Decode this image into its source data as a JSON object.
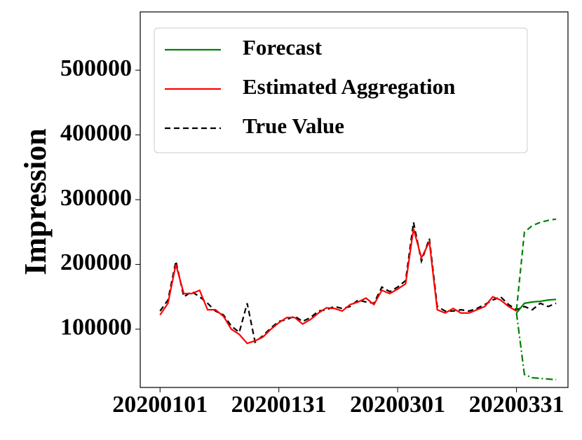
{
  "chart_data": {
    "type": "line",
    "y_label": "Impression",
    "x": [
      0,
      2,
      4,
      6,
      8,
      10,
      12,
      14,
      16,
      18,
      20,
      22,
      24,
      26,
      28,
      30,
      32,
      34,
      36,
      38,
      40,
      42,
      44,
      46,
      48,
      50,
      52,
      54,
      56,
      58,
      60,
      62,
      64,
      66,
      68,
      70,
      72,
      74,
      76,
      78,
      80,
      82,
      84,
      86,
      88,
      90,
      92,
      94,
      96,
      98,
      100
    ],
    "xlim": [
      -5,
      103
    ],
    "xticks": [
      {
        "value": 0,
        "label": "20200101"
      },
      {
        "value": 30,
        "label": "20200131"
      },
      {
        "value": 60,
        "label": "20200301"
      },
      {
        "value": 90,
        "label": "20200331"
      }
    ],
    "ylim": [
      10000,
      590000
    ],
    "yticks": [
      100000,
      200000,
      300000,
      400000,
      500000
    ],
    "legend": "upper-left",
    "series": [
      {
        "name": "Forecast",
        "color": "#008000",
        "dash": "solid",
        "values": [
          null,
          null,
          null,
          null,
          null,
          null,
          null,
          null,
          null,
          null,
          null,
          null,
          null,
          null,
          null,
          null,
          null,
          null,
          null,
          null,
          null,
          null,
          null,
          null,
          null,
          null,
          null,
          null,
          null,
          null,
          null,
          null,
          null,
          null,
          null,
          null,
          null,
          null,
          null,
          null,
          null,
          null,
          null,
          null,
          null,
          125000,
          140000,
          142000,
          143000,
          145000,
          146000
        ]
      },
      {
        "name": "Estimated Aggregation",
        "color": "#ff0000",
        "dash": "solid",
        "values": [
          122000,
          140000,
          200000,
          155000,
          155000,
          160000,
          130000,
          130000,
          120000,
          100000,
          92000,
          78000,
          82000,
          88000,
          100000,
          110000,
          118000,
          118000,
          108000,
          115000,
          125000,
          133000,
          132000,
          128000,
          138000,
          142000,
          148000,
          138000,
          160000,
          155000,
          162000,
          170000,
          255000,
          210000,
          235000,
          130000,
          125000,
          132000,
          125000,
          125000,
          130000,
          135000,
          150000,
          145000,
          135000,
          128000,
          null,
          null,
          null,
          null,
          null
        ]
      },
      {
        "name": "True Value",
        "color": "#000000",
        "dash": "dashed",
        "values": [
          128000,
          145000,
          205000,
          150000,
          158000,
          150000,
          140000,
          128000,
          122000,
          105000,
          95000,
          140000,
          80000,
          90000,
          102000,
          112000,
          115000,
          120000,
          112000,
          118000,
          128000,
          130000,
          135000,
          132000,
          135000,
          145000,
          142000,
          140000,
          165000,
          158000,
          165000,
          175000,
          265000,
          205000,
          240000,
          135000,
          128000,
          128000,
          130000,
          128000,
          132000,
          138000,
          145000,
          150000,
          138000,
          130000,
          135000,
          130000,
          140000,
          135000,
          140000
        ]
      },
      {
        "color": "#008000",
        "dash": "dashed",
        "values": [
          null,
          null,
          null,
          null,
          null,
          null,
          null,
          null,
          null,
          null,
          null,
          null,
          null,
          null,
          null,
          null,
          null,
          null,
          null,
          null,
          null,
          null,
          null,
          null,
          null,
          null,
          null,
          null,
          null,
          null,
          null,
          null,
          null,
          null,
          null,
          null,
          null,
          null,
          null,
          null,
          null,
          null,
          null,
          null,
          null,
          130000,
          250000,
          260000,
          265000,
          268000,
          270000
        ]
      },
      {
        "color": "#008000",
        "dash": "dashdot",
        "values": [
          null,
          null,
          null,
          null,
          null,
          null,
          null,
          null,
          null,
          null,
          null,
          null,
          null,
          null,
          null,
          null,
          null,
          null,
          null,
          null,
          null,
          null,
          null,
          null,
          null,
          null,
          null,
          null,
          null,
          null,
          null,
          null,
          null,
          null,
          null,
          null,
          null,
          null,
          null,
          null,
          null,
          null,
          null,
          null,
          null,
          125000,
          30000,
          25000,
          24000,
          23000,
          22000
        ]
      }
    ]
  }
}
